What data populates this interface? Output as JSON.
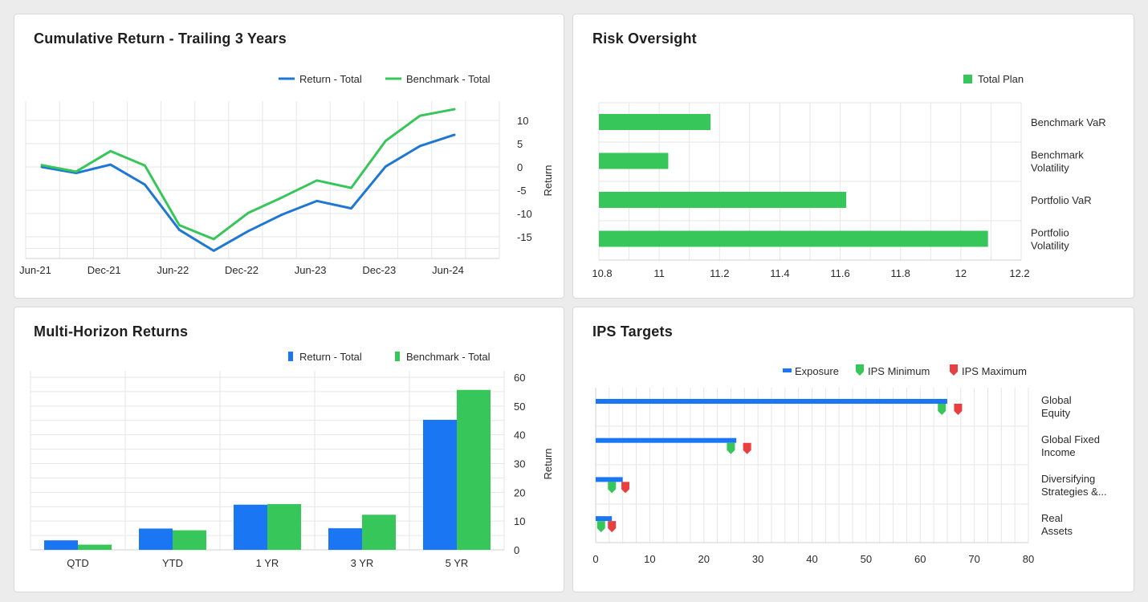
{
  "colors": {
    "blue": "#1a76f2",
    "blue_line": "#1f77d4",
    "green": "#37c65a",
    "red": "#e84040"
  },
  "cumulative": {
    "title": "Cumulative Return - Trailing 3 Years",
    "chart_data": {
      "type": "line",
      "x": [
        "2021-06",
        "2021-09",
        "2021-12",
        "2022-03",
        "2022-06",
        "2022-09",
        "2022-12",
        "2023-03",
        "2023-06",
        "2023-09",
        "2023-12",
        "2024-03",
        "2024-06"
      ],
      "xticks": [
        "Jun-21",
        "Dec-21",
        "Jun-22",
        "Dec-22",
        "Jun-23",
        "Dec-23",
        "Jun-24"
      ],
      "yticks": [
        10,
        5,
        0,
        -5,
        -10,
        -15
      ],
      "ylabel": "Return",
      "ylim": [
        -19,
        14
      ],
      "legend_position": "top-right",
      "grid": true,
      "series": [
        {
          "name": "Return - Total",
          "values": [
            0,
            -1.3,
            0.5,
            -3.8,
            -13.5,
            -18,
            -13.8,
            -10.2,
            -7.3,
            -8.9,
            0.1,
            4.5,
            6.9
          ]
        },
        {
          "name": "Benchmark - Total",
          "values": [
            0.4,
            -1.0,
            3.4,
            0.3,
            -12.5,
            -15.5,
            -9.9,
            -6.5,
            -2.9,
            -4.5,
            5.6,
            11.0,
            12.4
          ]
        }
      ]
    }
  },
  "risk": {
    "title": "Risk Oversight",
    "chart_data": {
      "type": "bar",
      "orientation": "horizontal",
      "categories": [
        [
          "Benchmark VaR"
        ],
        [
          "Benchmark",
          "Volatility"
        ],
        [
          "Portfolio VaR"
        ],
        [
          "Portfolio",
          "Volatility"
        ]
      ],
      "series": [
        {
          "name": "Total Plan",
          "values": [
            11.17,
            11.03,
            11.62,
            12.09
          ]
        }
      ],
      "xticks": [
        "10.8",
        "11",
        "11.2",
        "11.4",
        "11.6",
        "11.8",
        "12",
        "12.2"
      ],
      "xlim": [
        10.8,
        12.2
      ],
      "legend_position": "top-right",
      "grid": true
    }
  },
  "multi": {
    "title": "Multi-Horizon Returns",
    "chart_data": {
      "type": "bar",
      "categories": [
        "QTD",
        "YTD",
        "1 YR",
        "3 YR",
        "5 YR"
      ],
      "series": [
        {
          "name": "Return - Total",
          "values": [
            3.3,
            7.4,
            15.7,
            7.5,
            45.2
          ]
        },
        {
          "name": "Benchmark - Total",
          "values": [
            1.8,
            6.8,
            15.9,
            12.2,
            55.6
          ]
        }
      ],
      "yticks": [
        60,
        50,
        40,
        30,
        20,
        10,
        0
      ],
      "ylabel": "Return",
      "ylim": [
        0,
        60
      ],
      "legend_position": "top-right",
      "grid": true
    }
  },
  "ips": {
    "title": "IPS Targets",
    "chart_data": {
      "type": "bar",
      "orientation": "horizontal",
      "categories": [
        [
          "Global",
          "Equity"
        ],
        [
          "Global Fixed",
          "Income"
        ],
        [
          "Diversifying",
          "Strategies &..."
        ],
        [
          "Real",
          "Assets"
        ]
      ],
      "series": [
        {
          "name": "Exposure",
          "values": [
            65,
            26,
            5,
            3
          ]
        },
        {
          "name": "IPS Minimum",
          "values": [
            64,
            25,
            3,
            1
          ]
        },
        {
          "name": "IPS Maximum",
          "values": [
            67,
            28,
            5.5,
            3
          ]
        }
      ],
      "xticks": [
        "0",
        "10",
        "20",
        "30",
        "40",
        "50",
        "60",
        "70",
        "80"
      ],
      "xlim": [
        0,
        80
      ],
      "legend_position": "top-right",
      "grid": true
    }
  }
}
